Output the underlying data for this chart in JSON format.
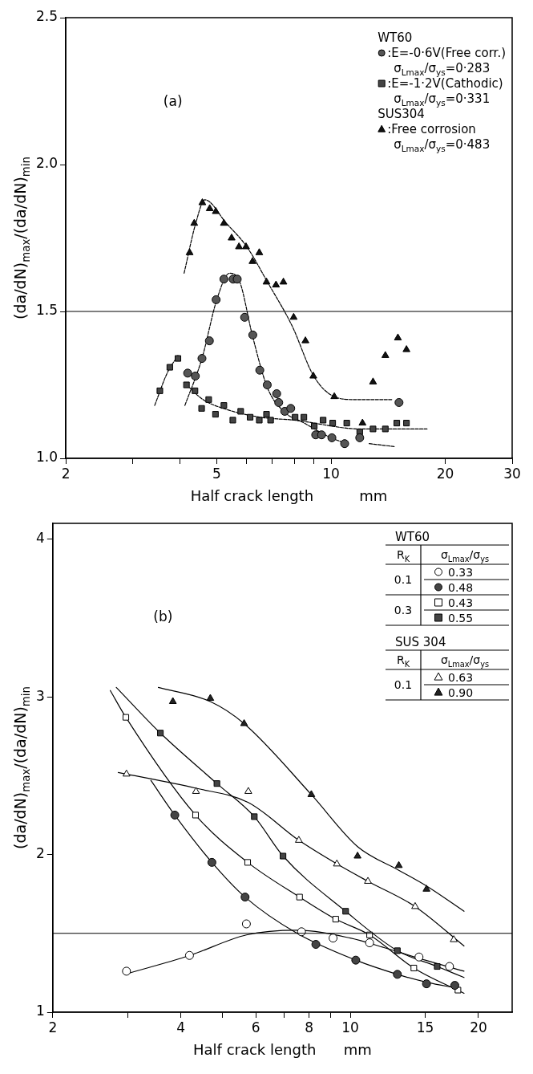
{
  "chart_data": [
    {
      "type": "scatter",
      "xlabel": "Half crack length          mm",
      "ylabel": "(da/dN)$_{max}$/(da/dN)$_{min}$",
      "log": "x",
      "legend": "top right",
      "xlim": [
        2,
        30
      ],
      "ylim": [
        1,
        2.5
      ],
      "xticks": [
        2,
        {
          "value": 3,
          "label": null
        },
        {
          "value": 4,
          "label": null
        },
        5,
        {
          "value": 6,
          "label": null
        },
        {
          "value": 7,
          "label": null
        },
        {
          "value": 8,
          "label": null
        },
        {
          "value": 9,
          "label": null
        },
        10,
        20,
        30
      ],
      "yticks": [
        {
          "value": 1,
          "label": "1.0"
        },
        {
          "value": 1.5,
          "label": "1.5"
        },
        {
          "value": 2,
          "label": "2.0"
        },
        {
          "value": 2.5,
          "label": "2.5"
        }
      ],
      "ref_lines": [
        {
          "axis": "y",
          "value": 1.5,
          "color": "#000000"
        }
      ],
      "annotations": [
        "(a)",
        "WT60",
        "SUS304"
      ],
      "series": [
        {
          "type": "scatter",
          "marker": "circle",
          "color": "#555555",
          "name": ":E=-0·6V(Free corr.)\nσ$_{Lmax}$/σ$_{ys}$=0·283",
          "x": [
            4.19,
            4.39,
            4.57,
            4.78,
            4.98,
            5.22,
            5.52,
            5.66,
            5.92,
            6.22,
            6.49,
            6.79,
            7.19,
            7.28,
            7.55,
            7.83,
            9.11,
            9.44,
            10.05,
            10.86,
            11.9,
            15.1
          ],
          "values": [
            1.29,
            1.28,
            1.34,
            1.4,
            1.54,
            1.61,
            1.61,
            1.61,
            1.48,
            1.42,
            1.3,
            1.25,
            1.22,
            1.19,
            1.16,
            1.17,
            1.08,
            1.08,
            1.07,
            1.05,
            1.07,
            1.19
          ]
        },
        {
          "type": "scatter",
          "marker": "square",
          "color": "#444444",
          "name": ":E=-1·2V(Cathodic)\nσ$_{Lmax}$/σ$_{ys}$=0·331",
          "x": [
            3.54,
            3.76,
            3.95,
            4.16,
            4.38,
            4.56,
            4.76,
            4.96,
            5.22,
            5.51,
            5.78,
            6.12,
            6.47,
            6.76,
            6.93,
            8.04,
            8.48,
            9.03,
            9.53,
            10.1,
            11.0,
            11.9,
            12.9,
            13.9,
            14.9,
            15.8
          ],
          "values": [
            1.23,
            1.31,
            1.34,
            1.25,
            1.23,
            1.17,
            1.2,
            1.15,
            1.18,
            1.13,
            1.16,
            1.14,
            1.13,
            1.15,
            1.13,
            1.14,
            1.14,
            1.11,
            1.13,
            1.12,
            1.12,
            1.09,
            1.1,
            1.1,
            1.12,
            1.12
          ]
        },
        {
          "type": "scatter",
          "marker": "triangle",
          "color": "#111111",
          "name": ":Free corrosion\nσ$_{Lmax}$/σ$_{ys}$=0·483",
          "x": [
            4.24,
            4.36,
            4.58,
            4.79,
            4.97,
            5.22,
            5.47,
            5.72,
            5.97,
            6.21,
            6.47,
            6.76,
            7.16,
            7.49,
            7.97,
            8.56,
            8.98,
            10.2,
            12.1,
            12.9,
            13.9,
            15.0,
            15.8
          ],
          "values": [
            1.7,
            1.8,
            1.87,
            1.85,
            1.84,
            1.8,
            1.75,
            1.72,
            1.72,
            1.67,
            1.7,
            1.6,
            1.59,
            1.6,
            1.48,
            1.4,
            1.28,
            1.21,
            1.12,
            1.26,
            1.35,
            1.41,
            1.37
          ]
        },
        {
          "type": "line",
          "marker": "none",
          "line_style": "dashed",
          "color": "#000000",
          "x": [
            4.1,
            4.4,
            4.65,
            5.3,
            6.0,
            6.8,
            7.9,
            9.0,
            10.2,
            11.5,
            14.5
          ],
          "values": [
            1.63,
            1.8,
            1.88,
            1.8,
            1.72,
            1.6,
            1.45,
            1.28,
            1.21,
            1.2,
            1.2
          ]
        },
        {
          "type": "line",
          "marker": "none",
          "line_style": "dashed",
          "color": "#000000",
          "x": [
            4.12,
            4.57,
            5.0,
            5.4,
            5.75,
            6.2,
            6.8,
            7.5,
            8.5,
            10.0,
            11.0,
            11.8,
            12.6,
            14.7
          ],
          "values": [
            1.18,
            1.34,
            1.54,
            1.63,
            1.6,
            1.42,
            1.24,
            1.16,
            1.12,
            1.07,
            1.05,
            null,
            1.05,
            1.04
          ]
        },
        {
          "type": "line",
          "marker": "none",
          "line_style": "dashed",
          "color": "#000000",
          "x": [
            3.43,
            3.7,
            3.95,
            4.05,
            4.16,
            4.6,
            5.2,
            6.5,
            8.0,
            12.0,
            17.9
          ],
          "values": [
            1.18,
            1.29,
            1.35,
            null,
            1.25,
            1.2,
            1.17,
            1.14,
            1.13,
            1.1,
            1.1
          ]
        }
      ]
    },
    {
      "type": "scatter",
      "xlabel": "Half crack length      mm",
      "ylabel": "(da/dN)$_{max}$/(da/dN)$_{min}$",
      "log": "x",
      "legend": "top right",
      "xlim": [
        2,
        24
      ],
      "ylim": [
        1,
        4.1
      ],
      "xticks": [
        2,
        {
          "value": 3,
          "label": null
        },
        4,
        {
          "value": 5,
          "label": null
        },
        6,
        {
          "value": 7,
          "label": null
        },
        8,
        {
          "value": 9,
          "label": null
        },
        10,
        15,
        20
      ],
      "yticks": [
        1,
        2,
        3,
        4
      ],
      "ref_lines": [
        {
          "axis": "y",
          "value": 1.5,
          "color": "#000000"
        }
      ],
      "annotations": [
        "(b)",
        "WT60",
        "R$_{K}$",
        "σ$_{Lmax}$/σ$_{ys}$",
        "0.1",
        "0.3",
        "SUS 304",
        "R$_{K}$",
        "σ$_{Lmax}$/σ$_{ys}$",
        "0.1"
      ],
      "series": [
        {
          "type": "scatter",
          "marker": "circle",
          "color": "#ffffff",
          "name": "0.33",
          "x": [
            2.98,
            4.19,
            5.7,
            7.68,
            9.11,
            11.1,
            14.5,
            17.1
          ],
          "values": [
            1.26,
            1.36,
            1.56,
            1.51,
            1.47,
            1.44,
            1.35,
            1.29
          ]
        },
        {
          "type": "scatter",
          "marker": "circle",
          "color": "#444444",
          "name": "0.48",
          "x": [
            3.87,
            4.73,
            5.66,
            8.3,
            10.3,
            12.9,
            15.1,
            17.6
          ],
          "values": [
            2.25,
            1.95,
            1.73,
            1.43,
            1.33,
            1.24,
            1.18,
            1.17
          ]
        },
        {
          "type": "scatter",
          "marker": "square",
          "color": "#ffffff",
          "name": "0.43",
          "x": [
            2.97,
            4.33,
            5.74,
            7.6,
            9.24,
            11.1,
            14.1,
            17.9
          ],
          "values": [
            2.87,
            2.25,
            1.95,
            1.73,
            1.59,
            1.49,
            1.28,
            1.14
          ]
        },
        {
          "type": "scatter",
          "marker": "square",
          "color": "#444444",
          "name": "0.55",
          "x": [
            3.58,
            4.86,
            5.95,
            6.95,
            9.75,
            12.9,
            16.0
          ],
          "values": [
            2.77,
            2.45,
            2.24,
            1.99,
            1.64,
            1.39,
            1.29
          ]
        },
        {
          "type": "scatter",
          "marker": "triangle",
          "color": "#ffffff",
          "name": "0.63",
          "x": [
            2.98,
            4.34,
            5.76,
            7.57,
            9.3,
            11.0,
            14.2,
            17.5
          ],
          "values": [
            2.51,
            2.4,
            2.4,
            2.09,
            1.94,
            1.83,
            1.67,
            1.46
          ]
        },
        {
          "type": "scatter",
          "marker": "triangle",
          "color": "#222222",
          "name": "0.90",
          "x": [
            3.83,
            4.69,
            5.63,
            8.1,
            10.4,
            13.0,
            15.1
          ],
          "values": [
            2.97,
            2.99,
            2.83,
            2.38,
            1.99,
            1.93,
            1.78
          ]
        },
        {
          "type": "line",
          "marker": "none",
          "line_style": "solid",
          "color": "#000000",
          "x": [
            2.95,
            4.2,
            5.7,
            7.5,
            10,
            12,
            15,
            18.5
          ],
          "values": [
            1.24,
            1.36,
            1.49,
            1.52,
            1.47,
            1.41,
            1.33,
            1.26
          ]
        },
        {
          "type": "line",
          "marker": "none",
          "line_style": "solid",
          "color": "#000000",
          "x": [
            3.4,
            3.87,
            4.73,
            5.66,
            7.5,
            10.3,
            12.9,
            15.1,
            18
          ],
          "values": [
            2.47,
            2.25,
            1.95,
            1.73,
            1.5,
            1.33,
            1.24,
            1.19,
            1.15
          ]
        },
        {
          "type": "line",
          "marker": "none",
          "line_style": "solid",
          "color": "#000000",
          "x": [
            2.73,
            2.97,
            4.33,
            5.74,
            7.6,
            9.24,
            11.1,
            14.1,
            18.5
          ],
          "values": [
            3.04,
            2.87,
            2.25,
            1.95,
            1.73,
            1.59,
            1.49,
            1.28,
            1.12
          ]
        },
        {
          "type": "line",
          "marker": "none",
          "line_style": "solid",
          "color": "#000000",
          "x": [
            2.82,
            3.58,
            4.86,
            5.95,
            6.95,
            9.75,
            12.9,
            16,
            18.5
          ],
          "values": [
            3.06,
            2.77,
            2.45,
            2.24,
            1.99,
            1.64,
            1.39,
            1.29,
            1.22
          ]
        },
        {
          "type": "line",
          "marker": "none",
          "line_style": "solid",
          "color": "#000000",
          "x": [
            2.85,
            4.34,
            5.76,
            7.57,
            9.3,
            11,
            14.2,
            18.5
          ],
          "values": [
            2.52,
            2.42,
            2.33,
            2.09,
            1.94,
            1.83,
            1.67,
            1.42
          ]
        },
        {
          "type": "line",
          "marker": "none",
          "line_style": "solid",
          "color": "#000000",
          "x": [
            3.54,
            4.69,
            5.63,
            8.1,
            10.4,
            13,
            15.1,
            18.5
          ],
          "values": [
            3.06,
            2.97,
            2.83,
            2.38,
            2.05,
            1.9,
            1.8,
            1.64
          ]
        }
      ]
    }
  ]
}
